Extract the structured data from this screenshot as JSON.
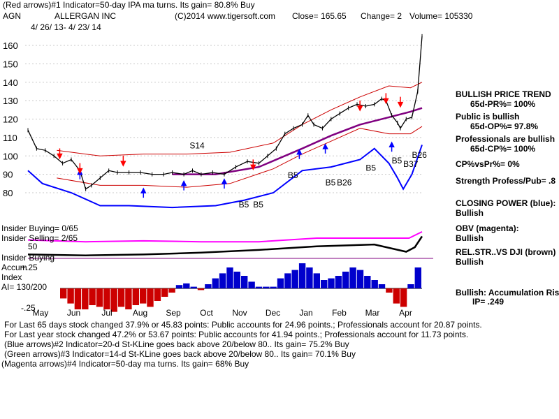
{
  "header": {
    "line1": "(Red arrows)#1 Indicator=50-day IPA ma turns. Its gain= 80.8% Buy",
    "symbol": "AGN",
    "company": "ALLERGAN INC",
    "copyright": "(C)2014 www.tigersoft.com",
    "close": "Close=  165.65",
    "change": "Change= 2",
    "volume": "Volume= 105330",
    "daterange": "4/ 26/ 13- 4/ 23/ 14"
  },
  "right_panel": {
    "l1": "BULLISH PRICE TREND",
    "l2": "65d-PR%= 100%",
    "l3": "Public is bullish",
    "l4": "65d-OP%= 97.8%",
    "l5": "Professionals are bullish",
    "l6": "65d-CP%= 100%",
    "l7": "CP%vsPr%=  0%",
    "l8": "Strength Profess/Pub= .8",
    "l9": "CLOSING POWER (blue):",
    "l10": "Bullish",
    "l11": "OBV (magenta):",
    "l12": "Bullish",
    "l13": "REL.STR..VS DJI (brown)",
    "l14": "Bullish",
    "l15": "Bullish: Accumulation Risi",
    "l16": "IP=  .249"
  },
  "left_panel": {
    "insider_buying_ratio": "Insider Buying= 0/65",
    "insider_selling_ratio": "Insider Selling= 2/65",
    "val50": "50",
    "insider_buying": "Insider Buying",
    "accum": "Accum",
    "plus25": "+.25",
    "index": "Index",
    "ai": "AI= 130/200",
    "minus25": "-.25"
  },
  "footer": {
    "f1": "For Last 65 days stock changed  37.9% or  45.83 points:  Public accounts for  24.96 points.;  Professionals account for  20.87 points.",
    "f2": "For Last year stock changed  47.2% or  53.67 points:  Public accounts for  41.94 points.;  Professionals account for  11.73 points.",
    "f3": "(Blue arrows)#2 Indicator=20-d St-KLine goes back above 20/below 80.. Its gain= 75.2% Buy",
    "f4": "(Green arrows)#3 Indicator=14-d St-KLine goes back above 20/below 80.. Its gain= 70.1% Buy",
    "f5": "(Magenta arrows)#4 Indicator=50-day ma turns. Its gain= 68% Buy"
  },
  "colors": {
    "price": "#000000",
    "bands": "#cc0000",
    "ma": "#800080",
    "closing_power": "#0000ff",
    "obv": "#ff00ff",
    "rel_strength": "#000000",
    "accum_pos": "#0000cc",
    "accum_neg": "#cc0000",
    "buy_arrow": "#0000ff",
    "sell_arrow": "#ff0000"
  },
  "chart_data": {
    "type": "line",
    "title": "ALLERGAN INC",
    "price_ticks": [
      160,
      150,
      140,
      130,
      120,
      110,
      100,
      90,
      80
    ],
    "month_labels": [
      "May",
      "Jun",
      "Jul",
      "Aug",
      "Sep",
      "Oct",
      "Nov",
      "Dec",
      "Jan",
      "Feb",
      "Mar",
      "Apr"
    ],
    "ylim": [
      70,
      165
    ],
    "price": [
      [
        0,
        114
      ],
      [
        6,
        104
      ],
      [
        12,
        103
      ],
      [
        18,
        100
      ],
      [
        24,
        96
      ],
      [
        30,
        98
      ],
      [
        36,
        92
      ],
      [
        40,
        82
      ],
      [
        44,
        84
      ],
      [
        50,
        88
      ],
      [
        56,
        92
      ],
      [
        62,
        91
      ],
      [
        70,
        91
      ],
      [
        78,
        91
      ],
      [
        86,
        90
      ],
      [
        94,
        90
      ],
      [
        100,
        91
      ],
      [
        108,
        90
      ],
      [
        114,
        92
      ],
      [
        120,
        90
      ],
      [
        128,
        91
      ],
      [
        136,
        90
      ],
      [
        144,
        94
      ],
      [
        152,
        97
      ],
      [
        160,
        96
      ],
      [
        166,
        100
      ],
      [
        172,
        104
      ],
      [
        178,
        112
      ],
      [
        184,
        115
      ],
      [
        190,
        117
      ],
      [
        194,
        122
      ],
      [
        198,
        117
      ],
      [
        204,
        115
      ],
      [
        210,
        120
      ],
      [
        216,
        123
      ],
      [
        222,
        126
      ],
      [
        228,
        128
      ],
      [
        234,
        127
      ],
      [
        240,
        128
      ],
      [
        245,
        131
      ],
      [
        248,
        130
      ],
      [
        252,
        122
      ],
      [
        256,
        118
      ],
      [
        258,
        115
      ],
      [
        262,
        120
      ],
      [
        266,
        121
      ],
      [
        270,
        135
      ],
      [
        273,
        165
      ]
    ],
    "ma50": [
      [
        100,
        90
      ],
      [
        130,
        90
      ],
      [
        160,
        94
      ],
      [
        190,
        104
      ],
      [
        210,
        111
      ],
      [
        230,
        117
      ],
      [
        250,
        121
      ],
      [
        265,
        124
      ],
      [
        273,
        126
      ]
    ],
    "upper_band": [
      [
        20,
        103
      ],
      [
        50,
        100
      ],
      [
        80,
        101
      ],
      [
        110,
        101
      ],
      [
        140,
        102
      ],
      [
        170,
        107
      ],
      [
        190,
        117
      ],
      [
        210,
        125
      ],
      [
        230,
        132
      ],
      [
        250,
        138
      ],
      [
        265,
        137
      ],
      [
        273,
        140
      ]
    ],
    "lower_band": [
      [
        20,
        88
      ],
      [
        50,
        84
      ],
      [
        80,
        84
      ],
      [
        110,
        83
      ],
      [
        140,
        85
      ],
      [
        170,
        93
      ],
      [
        190,
        101
      ],
      [
        210,
        108
      ],
      [
        230,
        115
      ],
      [
        250,
        112
      ],
      [
        265,
        112
      ],
      [
        273,
        116
      ]
    ],
    "closing_power": [
      [
        0,
        92
      ],
      [
        10,
        85
      ],
      [
        30,
        80
      ],
      [
        50,
        73
      ],
      [
        70,
        73
      ],
      [
        100,
        72
      ],
      [
        130,
        73
      ],
      [
        150,
        76
      ],
      [
        170,
        80
      ],
      [
        190,
        92
      ],
      [
        210,
        94
      ],
      [
        230,
        98
      ],
      [
        240,
        104
      ],
      [
        250,
        96
      ],
      [
        256,
        88
      ],
      [
        260,
        82
      ],
      [
        266,
        90
      ],
      [
        273,
        106
      ]
    ],
    "obv": [
      [
        0,
        58
      ],
      [
        40,
        56
      ],
      [
        80,
        57
      ],
      [
        120,
        56
      ],
      [
        160,
        56
      ],
      [
        200,
        60
      ],
      [
        240,
        60
      ],
      [
        264,
        60
      ],
      [
        273,
        67
      ]
    ],
    "rel_strength": [
      [
        0,
        42
      ],
      [
        40,
        41
      ],
      [
        80,
        42
      ],
      [
        120,
        44
      ],
      [
        160,
        47
      ],
      [
        200,
        51
      ],
      [
        240,
        53
      ],
      [
        262,
        45
      ],
      [
        268,
        50
      ],
      [
        273,
        62
      ]
    ],
    "accumulation": [
      -0.12,
      -0.18,
      -0.25,
      -0.25,
      -0.2,
      -0.22,
      -0.25,
      -0.28,
      -0.22,
      -0.25,
      -0.2,
      -0.18,
      -0.22,
      -0.15,
      -0.1,
      -0.05,
      0.04,
      0.06,
      0.02,
      -0.02,
      0.05,
      0.12,
      0.18,
      0.25,
      0.2,
      0.15,
      0.08,
      0.02,
      0.02,
      0.02,
      0.12,
      0.18,
      0.22,
      0.3,
      0.25,
      0.18,
      0.1,
      0.12,
      0.15,
      0.2,
      0.25,
      0.22,
      0.15,
      0.1,
      0.05,
      -0.05,
      -0.18,
      -0.22,
      0.05,
      0.25
    ],
    "annotations": [
      "S14",
      "B5",
      "B5",
      "B5",
      "B5",
      "B26",
      "B5",
      "B5",
      "B37",
      "B26"
    ]
  }
}
